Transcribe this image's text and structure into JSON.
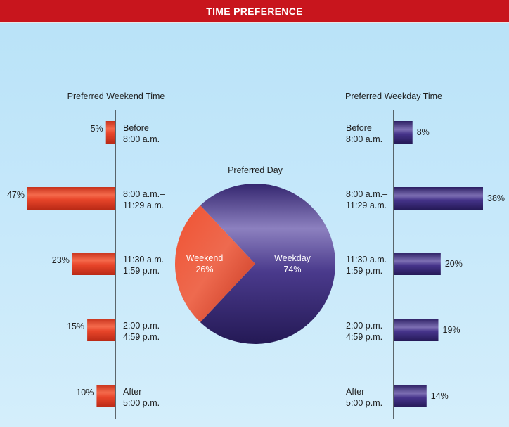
{
  "header": {
    "title": "TIME PREFERENCE"
  },
  "colors": {
    "header": "#c8151d",
    "weekend": "#e8452a",
    "weekday": "#3d2c7a"
  },
  "chart_data": [
    {
      "type": "bar",
      "orientation": "horizontal",
      "title": "Preferred Weekend Time",
      "categories": [
        [
          "Before",
          "8:00 a.m."
        ],
        [
          "8:00 a.m.–",
          "11:29 a.m."
        ],
        [
          "11:30 a.m.–",
          "1:59 p.m."
        ],
        [
          "2:00 p.m.–",
          "4:59 p.m."
        ],
        [
          "After",
          "5:00 p.m."
        ]
      ],
      "values": [
        5,
        47,
        23,
        15,
        10
      ],
      "value_labels": [
        "5%",
        "47%",
        "23%",
        "15%",
        "10%"
      ],
      "color": "#e8452a"
    },
    {
      "type": "pie",
      "title": "Preferred Day",
      "slices": [
        {
          "label": "Weekend",
          "value": 26,
          "value_label": "26%",
          "color": "#e8452a"
        },
        {
          "label": "Weekday",
          "value": 74,
          "value_label": "74%",
          "color": "#3d2c7a"
        }
      ]
    },
    {
      "type": "bar",
      "orientation": "horizontal",
      "title": "Preferred Weekday Time",
      "categories": [
        [
          "Before",
          "8:00 a.m."
        ],
        [
          "8:00 a.m.–",
          "11:29 a.m."
        ],
        [
          "11:30 a.m.–",
          "1:59 p.m."
        ],
        [
          "2:00 p.m.–",
          "4:59 p.m."
        ],
        [
          "After",
          "5:00 p.m."
        ]
      ],
      "values": [
        8,
        38,
        20,
        19,
        14
      ],
      "value_labels": [
        "8%",
        "38%",
        "20%",
        "19%",
        "14%"
      ],
      "color": "#3d2c7a"
    }
  ]
}
